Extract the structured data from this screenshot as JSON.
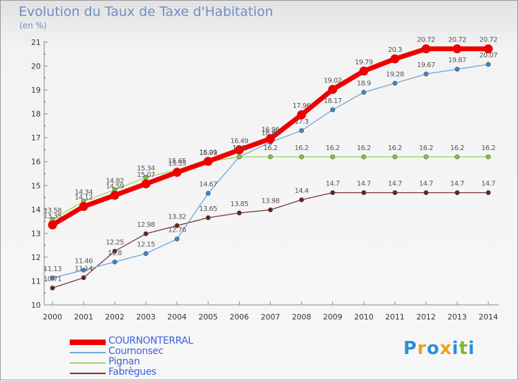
{
  "title": "Evolution du Taux de Taxe d'Habitation",
  "subtitle": "(en %)",
  "logo": {
    "letters": [
      "P",
      "r",
      "o",
      "x",
      "i",
      "t",
      "i"
    ],
    "colors": [
      "#2a8fd8",
      "#e8a21c",
      "#2a8fd8",
      "#e8a21c",
      "#2a8fd8",
      "#7cb82f",
      "#2a8fd8"
    ]
  },
  "chart_data": {
    "type": "line",
    "title": "Evolution du Taux de Taxe d'Habitation",
    "ylabel": "(en %)",
    "x": [
      "2000",
      "2001",
      "2002",
      "2003",
      "2004",
      "2005",
      "2006",
      "2007",
      "2008",
      "2009",
      "2010",
      "2011",
      "2012",
      "2013",
      "2014"
    ],
    "ylim": [
      10,
      21
    ],
    "yticks": [
      "10",
      "11",
      "12",
      "13",
      "14",
      "15",
      "16",
      "17",
      "18",
      "19",
      "20",
      "21"
    ],
    "grid": false,
    "legend": "bottom-left",
    "series": [
      {
        "name": "COURNONTERRAL",
        "color": "#ee0000",
        "marker": "#ee0000",
        "values": [
          13.35,
          14.12,
          14.59,
          15.07,
          15.55,
          16.01,
          16.49,
          16.96,
          17.96,
          19.02,
          19.79,
          20.3,
          20.72,
          20.72,
          20.72
        ],
        "labels": [
          "13.35",
          "14.12",
          "14.59",
          "15.07",
          "15.55",
          "16.01",
          "16.49",
          "16.96",
          "17.96",
          "19.02",
          "19.79",
          "20.3",
          "20.72",
          "20.72",
          "20.72"
        ]
      },
      {
        "name": "Cournonsec",
        "color": "#6aa6d8",
        "marker": "#3a86c8",
        "values": [
          11.13,
          11.46,
          11.8,
          12.15,
          12.76,
          14.67,
          16.2,
          16.81,
          17.3,
          18.17,
          18.9,
          19.28,
          19.67,
          19.87,
          20.07
        ],
        "labels": [
          "11.13",
          "11.46",
          "11.8",
          "12.15",
          "12.76",
          "14.67",
          "16.2",
          "16.81",
          "17.3",
          "18.17",
          "18.9",
          "19.28",
          "19.67",
          "19.87",
          "20.07"
        ]
      },
      {
        "name": "Pignan",
        "color": "#9ad860",
        "marker": "#7cc83c",
        "values": [
          13.58,
          14.34,
          14.82,
          15.34,
          15.65,
          15.99,
          16.2,
          16.2,
          16.2,
          16.2,
          16.2,
          16.2,
          16.2,
          16.2,
          16.2
        ],
        "labels": [
          "13.58",
          "14.34",
          "14.82",
          "15.34",
          "15.65",
          "15.99",
          "16.2",
          "16.2",
          "16.2",
          "16.2",
          "16.2",
          "16.2",
          "16.2",
          "16.2",
          "16.2"
        ]
      },
      {
        "name": "Fabrègues",
        "color": "#7a3434",
        "marker": "#6a2020",
        "values": [
          10.71,
          11.14,
          12.25,
          12.98,
          13.32,
          13.65,
          13.85,
          13.98,
          14.4,
          14.7,
          14.7,
          14.7,
          14.7,
          14.7,
          14.7
        ],
        "labels": [
          "10.71",
          "11.14",
          "12.25",
          "12.98",
          "13.32",
          "13.65",
          "13.85",
          "13.98",
          "14.4",
          "14.7",
          "14.7",
          "14.7",
          "14.7",
          "14.7",
          "14.7"
        ]
      }
    ]
  }
}
